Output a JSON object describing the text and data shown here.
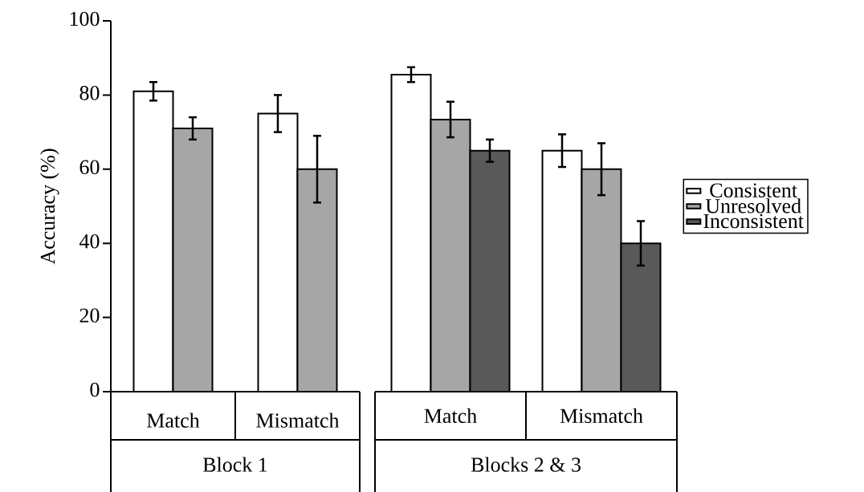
{
  "chart_data": [
    {
      "type": "bar",
      "xlabel": "Block 1",
      "ylabel": "Accuracy (%)",
      "categories": [
        "Match",
        "Mismatch"
      ],
      "ylim": [
        0,
        100
      ],
      "yticks": [
        0,
        20,
        40,
        60,
        80,
        100
      ],
      "series": [
        {
          "color": "#ffffff",
          "values": [
            81,
            75
          ],
          "errors": [
            2.5,
            5
          ]
        },
        {
          "color": "#a6a6a6",
          "values": [
            71,
            60
          ],
          "errors": [
            3,
            9
          ]
        }
      ]
    },
    {
      "type": "bar",
      "xlabel": "Blocks 2 & 3",
      "categories": [
        "Match",
        "Mismatch"
      ],
      "ylim": [
        0,
        100
      ],
      "tick_labels": "x",
      "legend": "right",
      "series": [
        {
          "name": "Consistent",
          "color": "#ffffff",
          "values": [
            85.5,
            65
          ],
          "errors": [
            2,
            4.4
          ]
        },
        {
          "name": "Unresolved",
          "color": "#a6a6a6",
          "values": [
            73.4,
            60
          ],
          "errors": [
            4.8,
            7
          ]
        },
        {
          "name": "Inconsistent",
          "color": "#595959",
          "values": [
            65,
            40
          ],
          "errors": [
            3,
            6
          ]
        }
      ]
    }
  ]
}
